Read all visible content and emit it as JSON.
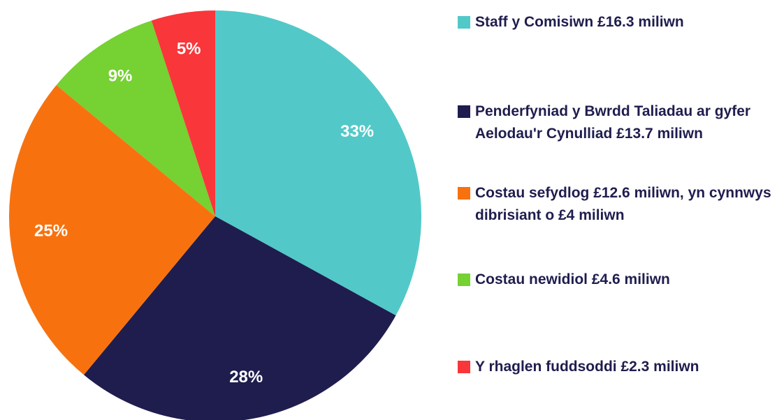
{
  "chart_data": {
    "type": "pie",
    "categories": [
      "Staff y Comisiwn £16.3 miliwn",
      "Penderfyniad y Bwrdd Taliadau ar gyfer Aelodau'r Cynulliad £13.7 miliwn",
      "Costau sefydlog £12.6 miliwn, yn cynnwys dibrisiant o £4 miliwn",
      "Costau newidiol £4.6 miliwn",
      "Y rhaglen fuddsoddi £2.3 miliwn"
    ],
    "values": [
      33,
      28,
      25,
      9,
      5
    ],
    "value_labels": [
      "33%",
      "28%",
      "25%",
      "9%",
      "5%"
    ],
    "colors": [
      "#52c9c8",
      "#1f1d4e",
      "#f7720f",
      "#76d132",
      "#f9363a"
    ],
    "legend": "right"
  }
}
